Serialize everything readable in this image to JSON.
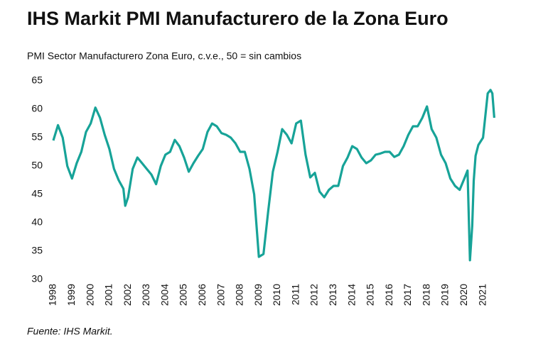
{
  "chart_data": {
    "type": "line",
    "title": "IHS Markit PMI Manufacturero de la Zona Euro",
    "subtitle": "PMI Sector Manufacturero Zona Euro, c.v.e., 50 = sin cambios",
    "source": "Fuente: IHS Markit.",
    "x": [
      1998,
      1998.25,
      1998.5,
      1998.75,
      1999,
      1999.25,
      1999.5,
      1999.75,
      2000,
      2000.25,
      2000.5,
      2000.75,
      2001,
      2001.25,
      2001.5,
      2001.75,
      2001.85,
      2002,
      2002.25,
      2002.5,
      2002.75,
      2003,
      2003.25,
      2003.5,
      2003.75,
      2004,
      2004.25,
      2004.5,
      2004.75,
      2005,
      2005.25,
      2005.5,
      2005.75,
      2006,
      2006.25,
      2006.5,
      2006.75,
      2007,
      2007.25,
      2007.5,
      2007.75,
      2008,
      2008.25,
      2008.5,
      2008.75,
      2009,
      2009.25,
      2009.5,
      2009.75,
      2010,
      2010.25,
      2010.5,
      2010.75,
      2011,
      2011.25,
      2011.5,
      2011.75,
      2012,
      2012.25,
      2012.5,
      2012.75,
      2013,
      2013.25,
      2013.5,
      2013.75,
      2014,
      2014.25,
      2014.5,
      2014.75,
      2015,
      2015.25,
      2015.5,
      2015.75,
      2016,
      2016.25,
      2016.5,
      2016.75,
      2017,
      2017.25,
      2017.5,
      2017.75,
      2018,
      2018.25,
      2018.5,
      2018.75,
      2019,
      2019.25,
      2019.5,
      2019.75,
      2020,
      2020.17,
      2020.3,
      2020.42,
      2020.5,
      2020.6,
      2020.75,
      2021,
      2021.25,
      2021.4,
      2021.5,
      2021.6
    ],
    "series": [
      {
        "name": "PMI",
        "color": "#17a398",
        "values": [
          54.5,
          57.2,
          55,
          50,
          47.8,
          50.5,
          52.5,
          56,
          57.5,
          60.3,
          58.5,
          55.5,
          53,
          49.5,
          47.5,
          46,
          43,
          44.5,
          49.5,
          51.5,
          50.5,
          49.5,
          48.5,
          46.8,
          50,
          52,
          52.5,
          54.6,
          53.5,
          51.5,
          49,
          50.5,
          51.8,
          53,
          56,
          57.5,
          57,
          55.8,
          55.5,
          55,
          54,
          52.5,
          52.5,
          49.5,
          45,
          34,
          34.5,
          42,
          49,
          52.5,
          56.5,
          55.5,
          54,
          57.5,
          58,
          52,
          48,
          48.8,
          45.5,
          44.5,
          45.8,
          46.5,
          46.5,
          50,
          51.5,
          53.5,
          53,
          51.5,
          50.5,
          51,
          52,
          52.2,
          52.5,
          52.5,
          51.6,
          52,
          53.5,
          55.5,
          57,
          57,
          58.5,
          60.5,
          56.5,
          55,
          52,
          50.5,
          47.8,
          46.5,
          45.8,
          47.8,
          49.2,
          33.4,
          39.5,
          47.4,
          51.8,
          53.7,
          55,
          62.8,
          63.4,
          62.8,
          58.5
        ]
      }
    ],
    "xlim": [
      1997.95,
      2021.7
    ],
    "xticks": [
      1998,
      1999,
      2000,
      2001,
      2002,
      2003,
      2004,
      2005,
      2006,
      2007,
      2008,
      2009,
      2010,
      2011,
      2012,
      2013,
      2014,
      2015,
      2016,
      2017,
      2018,
      2019,
      2020,
      2021
    ],
    "ylim": [
      30,
      65
    ],
    "yticks": [
      30,
      35,
      40,
      45,
      50,
      55,
      60,
      65
    ]
  }
}
